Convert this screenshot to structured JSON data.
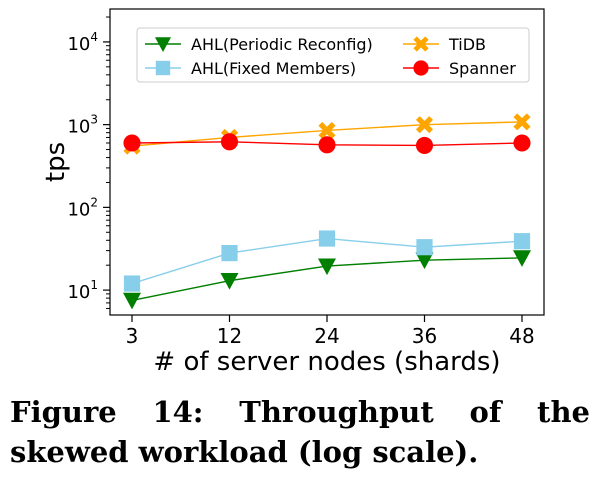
{
  "caption": "Figure 14: Throughput of the skewed workload (log scale).",
  "chart_data": {
    "type": "line",
    "title": "",
    "xlabel": "# of server nodes (shards)",
    "ylabel": "tps",
    "y_scale": "log",
    "ylim": [
      5,
      25000
    ],
    "grid": false,
    "legend_position": "top",
    "categories": [
      "3",
      "12",
      "24",
      "36",
      "48"
    ],
    "y_ticks": [
      {
        "value": 10,
        "base": "10",
        "exp": "1"
      },
      {
        "value": 100,
        "base": "10",
        "exp": "2"
      },
      {
        "value": 1000,
        "base": "10",
        "exp": "3"
      },
      {
        "value": 10000,
        "base": "10",
        "exp": "4"
      }
    ],
    "series": [
      {
        "name": "AHL(Periodic Reconfig)",
        "color": "#007f00",
        "marker": "triangle-down",
        "values": [
          7.5,
          13,
          19.5,
          23,
          24.5
        ]
      },
      {
        "name": "AHL(Fixed Members)",
        "color": "#87ceeb",
        "marker": "square",
        "values": [
          12,
          28,
          42,
          33,
          39
        ]
      },
      {
        "name": "TiDB",
        "color": "#ffa500",
        "marker": "x-cross",
        "values": [
          550,
          700,
          850,
          1000,
          1080
        ]
      },
      {
        "name": "Spanner",
        "color": "#ff0000",
        "marker": "circle",
        "values": [
          600,
          620,
          570,
          560,
          600
        ]
      }
    ]
  }
}
